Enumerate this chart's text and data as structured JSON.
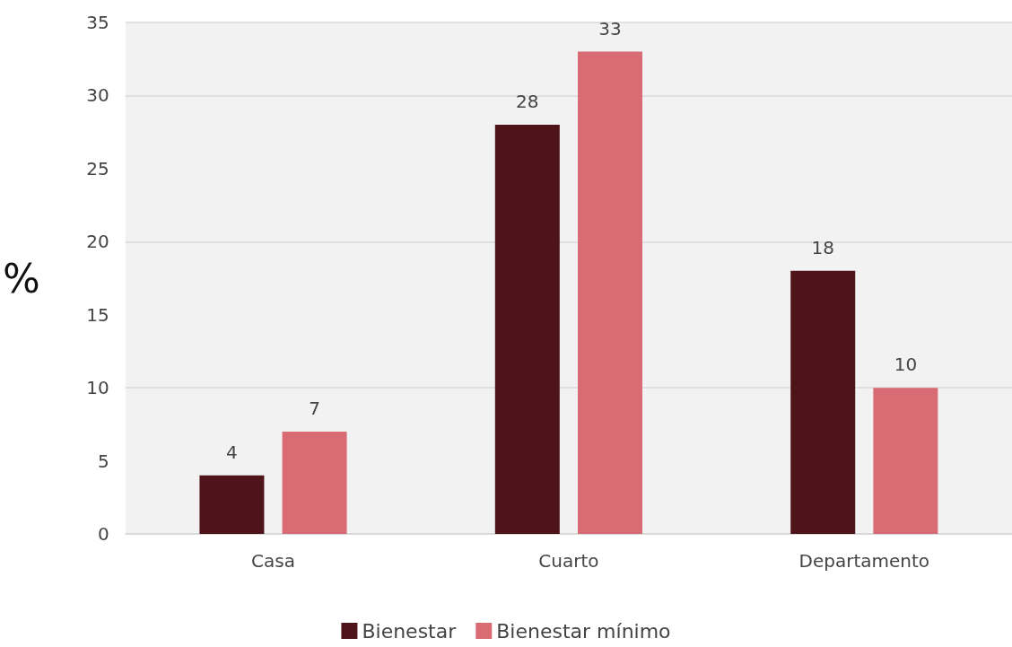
{
  "chart_data": {
    "type": "bar",
    "ylabel": "%",
    "categories": [
      "Casa",
      "Cuarto",
      "Departamento"
    ],
    "series": [
      {
        "name": "Bienestar",
        "color": "#4f141a",
        "values": [
          4,
          28,
          18
        ]
      },
      {
        "name": "Bienestar mínimo",
        "color": "#d96b75",
        "values": [
          7,
          33,
          10
        ]
      }
    ],
    "ylim": [
      0,
      35
    ],
    "yticks": [
      0,
      5,
      10,
      15,
      20,
      25,
      30,
      35
    ],
    "grid": "y",
    "legend": "bottom",
    "data_labels": true
  }
}
